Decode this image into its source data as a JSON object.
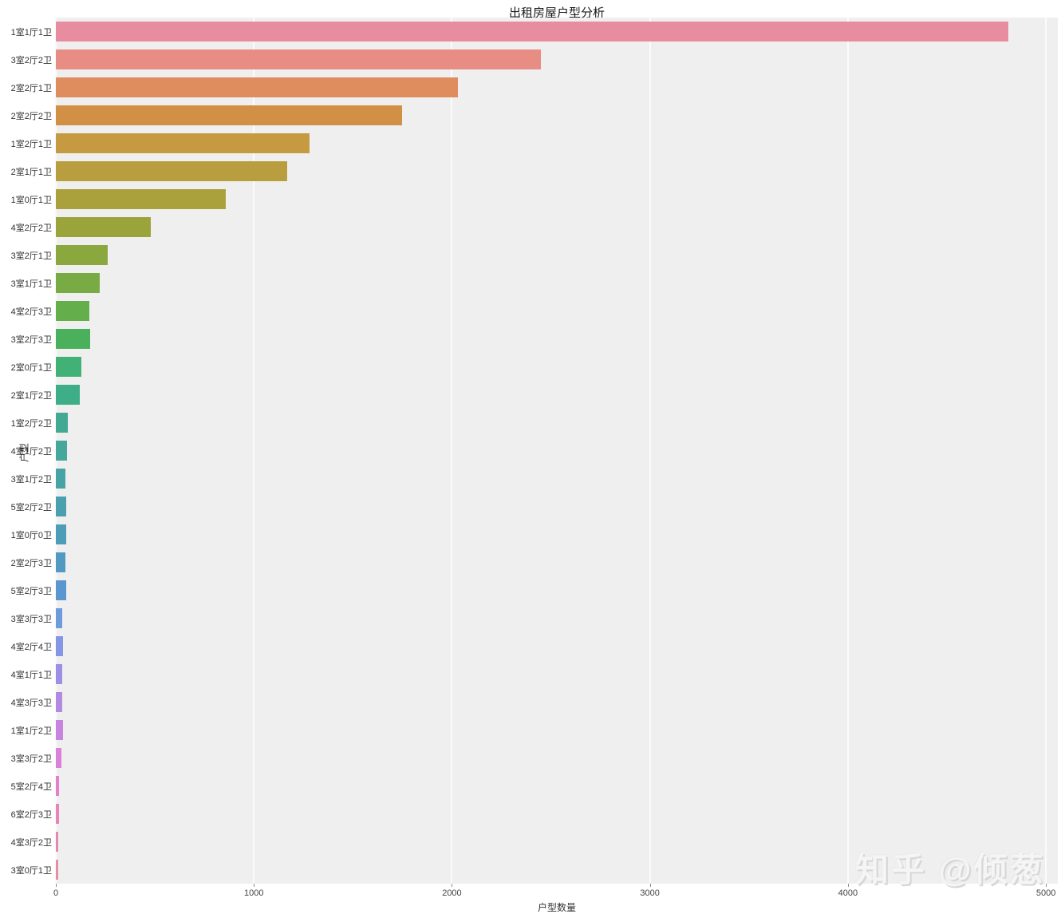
{
  "title": "出租房屋户型分析",
  "watermark": "知乎 @倾葱",
  "chart_data": {
    "type": "bar",
    "orientation": "horizontal",
    "title": "出租房屋户型分析",
    "xlabel": "户型数量",
    "ylabel": "户型",
    "xlim": [
      0,
      5060
    ],
    "x_ticks": [
      0,
      1000,
      2000,
      3000,
      4000,
      5000
    ],
    "grid": true,
    "plot_background": "#efeff0",
    "gridline_color": "#fbfbfb",
    "categories": [
      "1室1厅1卫",
      "3室2厅2卫",
      "2室2厅1卫",
      "2室2厅2卫",
      "1室2厅1卫",
      "2室1厅1卫",
      "1室0厅1卫",
      "4室2厅2卫",
      "3室2厅1卫",
      "3室1厅1卫",
      "4室2厅3卫",
      "3室2厅3卫",
      "2室0厅1卫",
      "2室1厅2卫",
      "1室2厅2卫",
      "4室1厅2卫",
      "3室1厅2卫",
      "5室2厅2卫",
      "1室0厅0卫",
      "2室2厅3卫",
      "5室2厅3卫",
      "3室3厅3卫",
      "4室2厅4卫",
      "4室1厅1卫",
      "4室3厅3卫",
      "1室1厅2卫",
      "3室3厅2卫",
      "5室2厅4卫",
      "6室2厅3卫",
      "4室3厅2卫",
      "3室0厅1卫"
    ],
    "values": [
      4810,
      2450,
      2030,
      1750,
      1280,
      1170,
      860,
      480,
      262,
      220,
      168,
      172,
      130,
      120,
      62,
      58,
      50,
      52,
      53,
      50,
      52,
      33,
      35,
      31,
      31,
      35,
      27,
      17,
      18,
      12,
      12
    ],
    "colors": [
      "#e88da0",
      "#e88d84",
      "#df8c5e",
      "#d19045",
      "#c59a41",
      "#b89e3e",
      "#aaa13c",
      "#9ba43b",
      "#8aa83e",
      "#79ab44",
      "#65ae4c",
      "#4bb05c",
      "#42b176",
      "#3eae88",
      "#43a992",
      "#46a79b",
      "#48a3a5",
      "#4aa0ae",
      "#4d9db8",
      "#529ac2",
      "#5b97cf",
      "#6d9bdc",
      "#8496e4",
      "#9c90e4",
      "#b28ae2",
      "#c785e0",
      "#d982d7",
      "#e281c8",
      "#e685ba",
      "#e789ae",
      "#e88da5"
    ]
  }
}
